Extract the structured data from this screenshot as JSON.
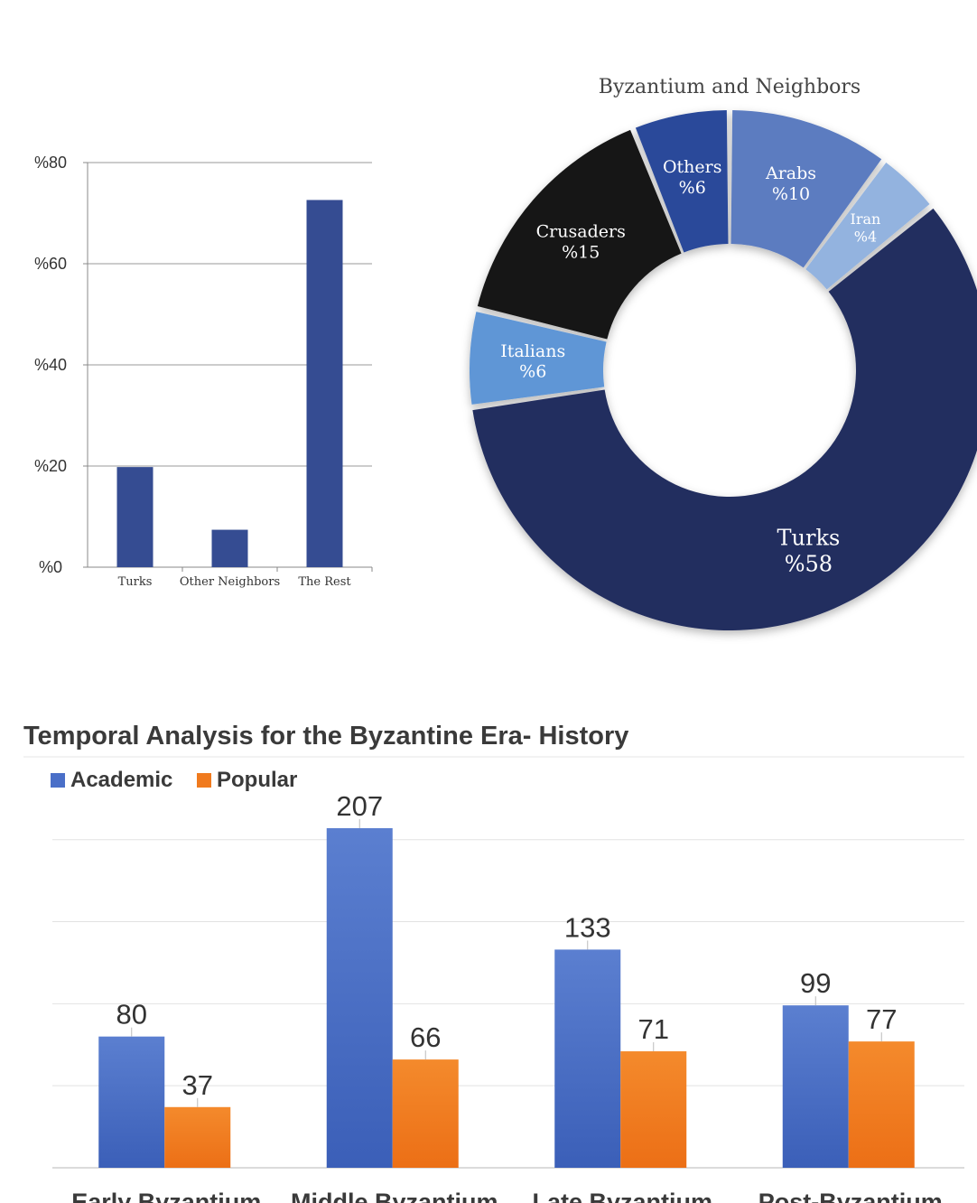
{
  "chart_data": [
    {
      "type": "bar",
      "title": "",
      "categories": [
        "Turks",
        "Other Neighbors",
        "The Rest"
      ],
      "values": [
        19.8,
        7.4,
        72.6
      ],
      "y_ticks": [
        "%0",
        "%20",
        "%40",
        "%60",
        "%80"
      ],
      "ylim": [
        0,
        80
      ],
      "grid": true,
      "color": "#354c92"
    },
    {
      "type": "pie",
      "title": "Byzantium and Neighbors",
      "slices": [
        {
          "label": "Arabs",
          "value_label": "%10",
          "value": 10,
          "color": "#5b7cc0",
          "text_color": "#ffffff"
        },
        {
          "label": "Iran",
          "value_label": "%4",
          "value": 4,
          "color": "#93b3df",
          "text_color": "#ffffff"
        },
        {
          "label": "Turks",
          "value_label": "%58",
          "value": 58,
          "color": "#232d5e",
          "text_color": "#ffffff"
        },
        {
          "label": "Italians",
          "value_label": "%6",
          "value": 6,
          "color": "#5f96d6",
          "text_color": "#ffffff"
        },
        {
          "label": "Crusaders",
          "value_label": "%15",
          "value": 15,
          "color": "#141414",
          "text_color": "#ffffff"
        },
        {
          "label": "Others",
          "value_label": "%6",
          "value": 6,
          "color": "#2a4a9a",
          "text_color": "#ffffff"
        }
      ]
    },
    {
      "type": "bar",
      "title": "Temporal Analysis for the Byzantine Era- History",
      "categories": [
        "Early Byzantium",
        "Middle Byzantium",
        "Late Byzantium",
        "Post-Byzantium"
      ],
      "series": [
        {
          "name": "Academic",
          "values": [
            80,
            207,
            133,
            99
          ],
          "color": "#4a6fc8"
        },
        {
          "name": "Popular",
          "values": [
            37,
            66,
            71,
            77
          ],
          "color": "#f07a1e"
        }
      ],
      "ylim": [
        0,
        200
      ],
      "grid": true,
      "legend": "top-left"
    }
  ]
}
